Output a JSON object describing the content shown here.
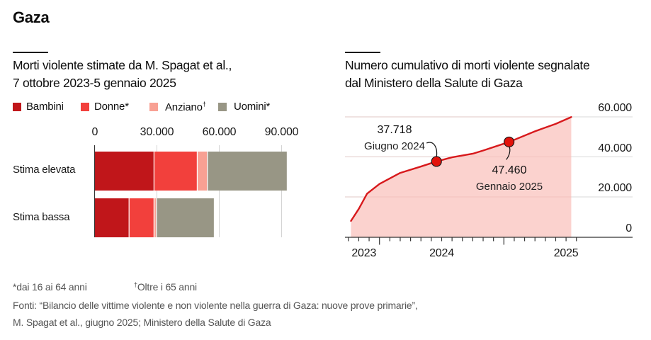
{
  "title": "Gaza",
  "left_panel": {
    "title_line1": "Morti violente stimate da M. Spagat et al.,",
    "title_line2": "7 ottobre 2023-5 gennaio 2025",
    "legend": [
      {
        "label": "Bambini",
        "sup": "",
        "color": "#c0161a"
      },
      {
        "label": "Donne*",
        "sup": "",
        "color": "#f2403c"
      },
      {
        "label": "Anziano",
        "sup": "†",
        "color": "#f8a093"
      },
      {
        "label": "Uomini*",
        "sup": "",
        "color": "#989685"
      }
    ]
  },
  "right_panel": {
    "title_line1": "Numero cumulativo di morti violente segnalate",
    "title_line2": "dal Ministero della Salute di Gaza"
  },
  "chart_data": [
    {
      "type": "bar",
      "orientation": "horizontal",
      "stacked": true,
      "title": "Morti violente stimate da M. Spagat et al., 7 ottobre 2023-5 gennaio 2025",
      "categories": [
        "Stima elevata",
        "Stima bassa"
      ],
      "series": [
        {
          "name": "Bambini",
          "color": "#c0161a",
          "values": [
            28600,
            16600
          ]
        },
        {
          "name": "Donne*",
          "color": "#f2403c",
          "values": [
            20800,
            12000
          ]
        },
        {
          "name": "Anziano†",
          "color": "#f8a093",
          "values": [
            4900,
            1200
          ]
        },
        {
          "name": "Uomini*",
          "color": "#989685",
          "values": [
            38200,
            27600
          ]
        }
      ],
      "xlim": [
        0,
        90000
      ],
      "xticks": [
        0,
        30000,
        60000,
        90000
      ],
      "xtick_labels": [
        "0",
        "30.000",
        "60.000",
        "90.000"
      ],
      "xaxis_position": "top",
      "grid": true,
      "legend_position": "top-left"
    },
    {
      "type": "area",
      "title": "Numero cumulativo di morti violente segnalate dal Ministero della Salute di Gaza",
      "line_color": "#d7191c",
      "fill_color": "#fbd0cb",
      "x_unit": "months since 2023-01-01",
      "points": [
        {
          "x": 9.25,
          "y": 8000
        },
        {
          "x": 10.0,
          "y": 14000
        },
        {
          "x": 10.8,
          "y": 21600
        },
        {
          "x": 12.0,
          "y": 26500
        },
        {
          "x": 14.0,
          "y": 32000
        },
        {
          "x": 16.0,
          "y": 35200
        },
        {
          "x": 17.5,
          "y": 37718
        },
        {
          "x": 19.0,
          "y": 39800
        },
        {
          "x": 21.0,
          "y": 41600
        },
        {
          "x": 22.0,
          "y": 43200
        },
        {
          "x": 24.5,
          "y": 47460
        },
        {
          "x": 27.0,
          "y": 52800
        },
        {
          "x": 29.0,
          "y": 56500
        },
        {
          "x": 30.5,
          "y": 59900
        }
      ],
      "annotations": [
        {
          "x": 17.5,
          "y": 37718,
          "value": "37.718",
          "label": "Giugno 2024"
        },
        {
          "x": 24.5,
          "y": 47460,
          "value": "47.460",
          "label": "Gennaio 2025"
        }
      ],
      "ylim": [
        0,
        60000
      ],
      "yticks": [
        0,
        20000,
        40000,
        60000
      ],
      "ytick_labels": [
        "0",
        "20.000",
        "40.000",
        "60.000"
      ],
      "yaxis_position": "right",
      "xlim_months": [
        9,
        34
      ],
      "year_labels": [
        {
          "label": "2023",
          "center": 10.5
        },
        {
          "label": "2024",
          "center": 18.0
        },
        {
          "label": "2025",
          "center": 30.0
        }
      ],
      "year_boundaries": [
        12,
        24
      ],
      "grid": true
    }
  ],
  "footnotes": {
    "note1": "*dai 16 ai 64 anni",
    "note2_sup": "†",
    "note2": "Oltre i 65 anni",
    "source_line1": "Fonti: “Bilancio delle vittime violente e non violente nella guerra di Gaza: nuove prove primarie”,",
    "source_line2": "M. Spagat et al., giugno 2025; Ministero della Salute di Gaza"
  }
}
